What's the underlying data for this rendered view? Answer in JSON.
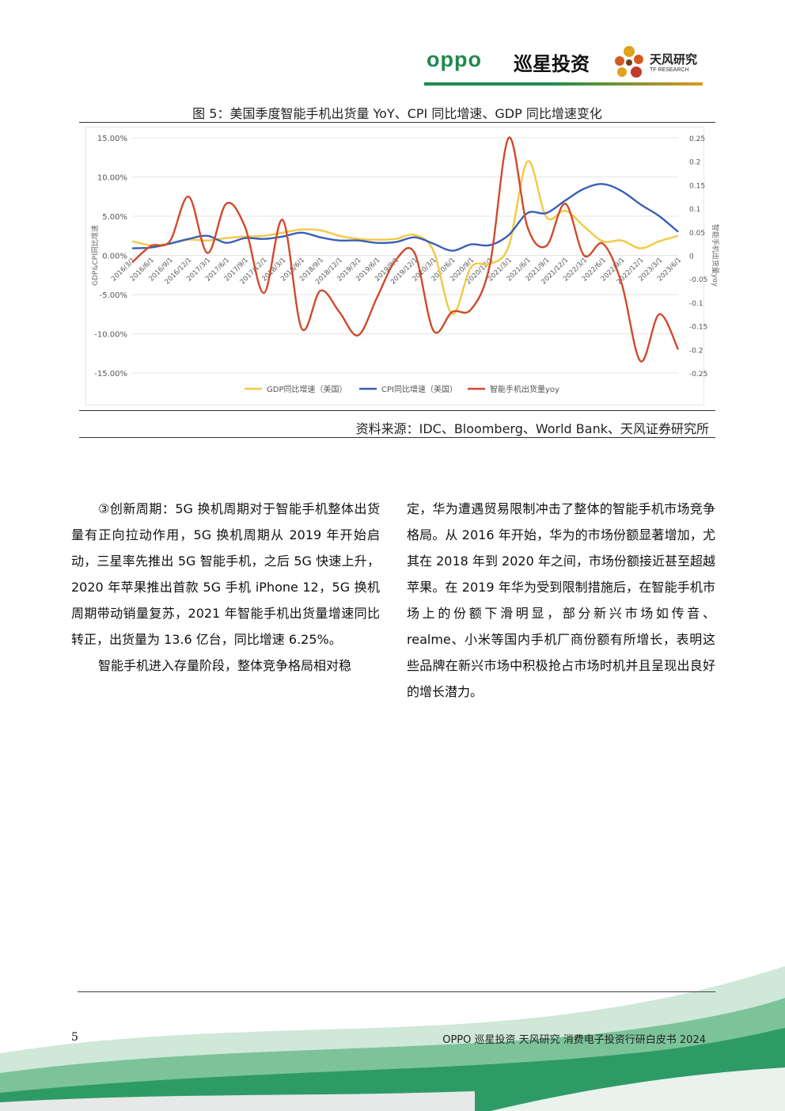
{
  "header": {
    "oppo": "oppo",
    "xunxing": "巡星投资",
    "tf_cn": "天风研究",
    "tf_en": "TF RESEARCH"
  },
  "figure": {
    "title": "图 5：美国季度智能手机出货量 YoY、CPI 同比增速、GDP 同比增速变化",
    "source": "资料来源：IDC、Bloomberg、World Bank、天风证券研究所"
  },
  "chart_data": {
    "type": "line",
    "x": [
      "2016/3/1",
      "2016/6/1",
      "2016/9/1",
      "2016/12/1",
      "2017/3/1",
      "2017/6/1",
      "2017/9/1",
      "2017/12/1",
      "2018/3/1",
      "2018/6/1",
      "2018/9/1",
      "2018/12/1",
      "2019/3/1",
      "2019/6/1",
      "2019/9/1",
      "2019/12/1",
      "2020/3/1",
      "2020/6/1",
      "2020/9/1",
      "2020/12/1",
      "2021/3/1",
      "2021/6/1",
      "2021/9/1",
      "2021/12/1",
      "2022/3/1",
      "2022/6/1",
      "2022/9/1",
      "2022/12/1",
      "2023/3/1",
      "2023/6/1"
    ],
    "left_axis": {
      "label": "GDP&CPI同比增速",
      "ticks": [
        "15.00%",
        "10.00%",
        "5.00%",
        "0.00%",
        "-5.00%",
        "-10.00%",
        "-15.00%"
      ],
      "ylim": [
        -15,
        15
      ]
    },
    "right_axis": {
      "label": "智能手机出货量yoy",
      "ticks": [
        "0.25",
        "0.2",
        "0.15",
        "0.1",
        "0.05",
        "0",
        "-0.05",
        "-0.1",
        "-0.15",
        "-0.2",
        "-0.25"
      ],
      "ylim": [
        -0.25,
        0.25
      ]
    },
    "series": [
      {
        "name": "GDP同比增速（美国）",
        "axis": "left",
        "color": "#f5c842",
        "values": [
          1.8,
          1.3,
          1.5,
          2.0,
          1.9,
          2.2,
          2.4,
          2.5,
          2.9,
          3.3,
          3.2,
          2.5,
          2.1,
          2.0,
          2.1,
          2.6,
          0.6,
          -7.5,
          -1.5,
          -1.1,
          1.2,
          12.0,
          4.9,
          5.7,
          3.7,
          1.8,
          1.9,
          0.9,
          1.8,
          2.5
        ]
      },
      {
        "name": "CPI同比增速（美国）",
        "axis": "left",
        "color": "#3a5fb8",
        "values": [
          0.9,
          1.0,
          1.5,
          2.1,
          2.5,
          1.6,
          2.2,
          2.1,
          2.4,
          2.9,
          2.3,
          1.9,
          1.9,
          1.6,
          1.7,
          2.3,
          1.5,
          0.6,
          1.4,
          1.3,
          2.6,
          5.4,
          5.4,
          7.0,
          8.5,
          9.1,
          8.2,
          6.5,
          5.0,
          3.0
        ]
      },
      {
        "name": "智能手机出货量yoy",
        "axis": "right",
        "color": "#d04a2c",
        "values": [
          -0.015,
          0.02,
          0.03,
          0.125,
          0.005,
          0.11,
          0.06,
          -0.08,
          0.075,
          -0.155,
          -0.075,
          -0.12,
          -0.17,
          -0.09,
          -0.01,
          0.005,
          -0.16,
          -0.12,
          -0.115,
          -0.02,
          0.25,
          0.06,
          0.02,
          0.11,
          0.0,
          0.025,
          -0.06,
          -0.225,
          -0.125,
          -0.2
        ]
      }
    ]
  },
  "body": {
    "left_p1": "③创新周期：5G 换机周期对于智能手机整体出货量有正向拉动作用，5G 换机周期从 2019 年开始启动，三星率先推出 5G 智能手机，之后 5G 快速上升，2020 年苹果推出首款 5G 手机 iPhone 12，5G 换机周期带动销量复苏，2021 年智能手机出货量增速同比转正，出货量为 13.6 亿台，同比增速 6.25%。",
    "left_p2": "智能手机进入存量阶段，整体竞争格局相对稳",
    "right_p1": "定，华为遭遇贸易限制冲击了整体的智能手机市场竞争格局。从 2016 年开始，华为的市场份额显著增加，尤其在 2018 年到 2020 年之间，市场份额接近甚至超越苹果。在 2019 年华为受到限制措施后，在智能手机市场上的份额下滑明显，部分新兴市场如传音、realme、小米等国内手机厂商份额有所增长，表明这些品牌在新兴市场中积极抢占市场时机并且呈现出良好的增长潜力。"
  },
  "footer": {
    "page": "5",
    "text": "OPPO 巡星投资  天风研究  消费电子投资行研白皮书 2024"
  }
}
